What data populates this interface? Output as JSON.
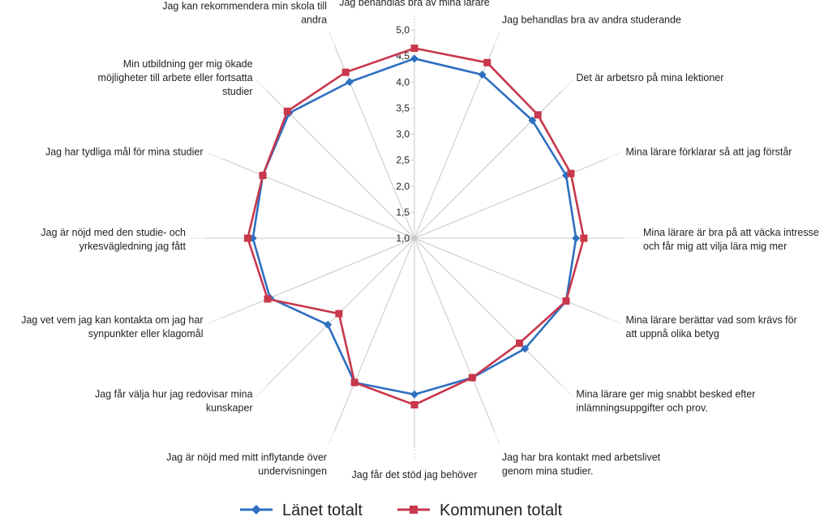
{
  "chart_data": {
    "type": "radar",
    "scale": {
      "min": 1.0,
      "max": 5.0,
      "step": 0.5
    },
    "tick_labels": [
      "1,0",
      "1,5",
      "2,0",
      "2,5",
      "3,0",
      "3,5",
      "4,0",
      "4,5",
      "5,0"
    ],
    "categories": [
      [
        "Jag behandlas bra av mina lärare"
      ],
      [
        "Jag behandlas bra av andra studerande"
      ],
      [
        "Det är arbetsro på mina lektioner"
      ],
      [
        "Mina lärare förklarar så att jag förstår"
      ],
      [
        "Mina lärare är bra på att väcka intresse",
        "och får mig att vilja lära mig mer"
      ],
      [
        "Mina lärare berättar vad som krävs för",
        "att uppnå olika betyg"
      ],
      [
        "Mina lärare ger mig snabbt besked efter",
        "inlämningsuppgifter och prov."
      ],
      [
        "Jag har bra kontakt med arbetslivet",
        "genom mina studier."
      ],
      [
        "Jag får det stöd jag behöver"
      ],
      [
        "Jag är nöjd med mitt inflytande över",
        "undervisningen"
      ],
      [
        "Jag får välja hur jag redovisar mina",
        "kunskaper"
      ],
      [
        "Jag vet vem jag kan kontakta om jag har",
        "synpunkter eller klagomål"
      ],
      [
        "Jag är nöjd med den studie- och",
        "yrkesvägledning jag fått"
      ],
      [
        "Jag har tydliga mål för mina studier"
      ],
      [
        "Min utbildning ger mig ökade",
        "möjligheter till arbete eller fortsatta",
        "studier"
      ],
      [
        "Jag kan rekommendera min skola till",
        "andra"
      ]
    ],
    "series": [
      {
        "name": "Länet totalt",
        "color": "#2e6fc0",
        "marker": "diamond",
        "values": [
          4.45,
          4.4,
          4.2,
          4.15,
          4.1,
          4.15,
          4.0,
          3.9,
          4.0,
          4.0,
          3.35,
          4.0,
          4.1,
          4.15,
          4.4,
          4.25
        ]
      },
      {
        "name": "Kommunen totalt",
        "color": "#c8374b",
        "marker": "square",
        "values": [
          4.65,
          4.65,
          4.35,
          4.25,
          4.25,
          4.15,
          3.85,
          3.9,
          4.2,
          4.0,
          3.05,
          4.05,
          4.2,
          4.15,
          4.45,
          4.45
        ]
      }
    ],
    "legend_position": "bottom",
    "grid": false
  }
}
